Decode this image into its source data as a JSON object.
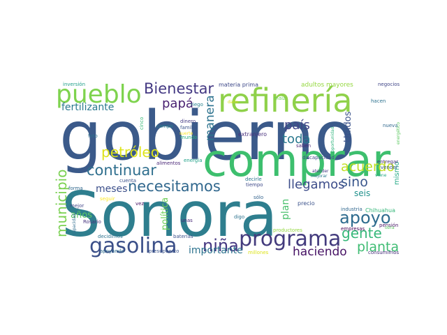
{
  "words": [
    {
      "id": "gobierno",
      "text": "gobierno",
      "color": "#3b5a8a"
    },
    {
      "id": "sonora",
      "text": "Sonora",
      "color": "#2e7e8e"
    },
    {
      "id": "comprar",
      "text": "comprar",
      "color": "#3dbf6e"
    },
    {
      "id": "refineria",
      "text": "refinería",
      "color": "#8fd14a"
    },
    {
      "id": "pueblo",
      "text": "pueblo",
      "color": "#7ed34e"
    },
    {
      "id": "gasolina",
      "text": "gasolina",
      "color": "#3b4f88"
    },
    {
      "id": "programa",
      "text": "programa",
      "color": "#433b7d"
    },
    {
      "id": "bienestar",
      "text": "Bienestar",
      "color": "#443983"
    },
    {
      "id": "necesitamos",
      "text": "necesitamos",
      "color": "#30678d"
    },
    {
      "id": "continuar",
      "text": "continuar",
      "color": "#2f6f8e"
    },
    {
      "id": "municipio",
      "text": "municipio",
      "color": "#7ad151"
    },
    {
      "id": "apoyo",
      "text": "apoyo",
      "color": "#2e6b8e"
    },
    {
      "id": "gente",
      "text": "gente",
      "color": "#35b779"
    },
    {
      "id": "nina",
      "text": "niña",
      "color": "#453781"
    },
    {
      "id": "petroleo",
      "text": "petróleo",
      "color": "#dde318"
    },
    {
      "id": "llegamos",
      "text": "llegamos",
      "color": "#3d4d8a"
    },
    {
      "id": "pais",
      "text": "país",
      "color": "#404588"
    },
    {
      "id": "papa",
      "text": "papá",
      "color": "#481f70"
    },
    {
      "id": "manera",
      "text": "manera",
      "color": "#2c728e"
    },
    {
      "id": "toda",
      "text": "toda",
      "color": "#2a788e"
    },
    {
      "id": "acuerdo",
      "text": "acuerdo",
      "color": "#c2df23"
    },
    {
      "id": "planta",
      "text": "planta",
      "color": "#3fbc73"
    },
    {
      "id": "haciendo",
      "text": "haciendo",
      "color": "#471365"
    },
    {
      "id": "sino",
      "text": "sino",
      "color": "#39568c"
    },
    {
      "id": "fertilizante",
      "text": "fertilizante",
      "color": "#2a788e"
    },
    {
      "id": "importante",
      "text": "importante",
      "color": "#2c728e"
    },
    {
      "id": "meses",
      "text": "meses",
      "color": "#3c4f8a"
    },
    {
      "id": "anos",
      "text": "años",
      "color": "#5ec962"
    },
    {
      "id": "politica",
      "text": "política",
      "color": "#6ece58"
    },
    {
      "id": "plan",
      "text": "plan",
      "color": "#4ac16d"
    },
    {
      "id": "unidos",
      "text": "Unidos",
      "color": "#3b528b"
    },
    {
      "id": "seis",
      "text": "seis",
      "color": "#21918c"
    },
    {
      "id": "mismo",
      "text": "mismo",
      "color": "#22a884"
    },
    {
      "id": "inversion",
      "text": "inversión",
      "color": "#1f9e89"
    },
    {
      "id": "materia_prima",
      "text": "materia prima",
      "color": "#3e4989"
    },
    {
      "id": "adultos_mayores",
      "text": "adultos mayores",
      "color": "#95d840"
    },
    {
      "id": "negocios",
      "text": "negocios",
      "color": "#404688"
    },
    {
      "id": "maiz",
      "text": "maíz",
      "color": "#6ece58"
    },
    {
      "id": "hacen",
      "text": "hacen",
      "color": "#2c718e"
    },
    {
      "id": "dano",
      "text": "daño",
      "color": "#d8e219"
    },
    {
      "id": "riego",
      "text": "riego",
      "color": "#26828e"
    },
    {
      "id": "cinco",
      "text": "cinco",
      "color": "#38b977"
    },
    {
      "id": "dinero",
      "text": "dinero",
      "color": "#443a83"
    },
    {
      "id": "familia",
      "text": "familia",
      "color": "#3a548c"
    },
    {
      "id": "campo",
      "text": "campo",
      "color": "#27808e"
    },
    {
      "id": "suerte",
      "text": "suerte",
      "color": "#fde725"
    },
    {
      "id": "mundo",
      "text": "mundo",
      "color": "#29af7f"
    },
    {
      "id": "extranjero",
      "text": "extranjero",
      "color": "#472f7d"
    },
    {
      "id": "nueva",
      "text": "nueva",
      "color": "#31688e"
    },
    {
      "id": "energetico",
      "text": "energético",
      "color": "#5ec962"
    },
    {
      "id": "oportunidad",
      "text": "oportunidad",
      "color": "#2eb37c"
    },
    {
      "id": "saben",
      "text": "saben",
      "color": "#482475"
    },
    {
      "id": "foto",
      "text": "foto",
      "color": "#2c728e"
    },
    {
      "id": "alimentos",
      "text": "alimentos",
      "color": "#482576"
    },
    {
      "id": "energia",
      "text": "energía",
      "color": "#1fa088"
    },
    {
      "id": "discapacidad",
      "text": "discapacidad",
      "color": "#3f4889"
    },
    {
      "id": "entregar",
      "text": "entregar",
      "color": "#472d7b"
    },
    {
      "id": "vender",
      "text": "vender",
      "color": "#39568c"
    },
    {
      "id": "viene",
      "text": "viene",
      "color": "#22a884"
    },
    {
      "id": "forma",
      "text": "forma",
      "color": "#31688e"
    },
    {
      "id": "cuenta",
      "text": "cuenta",
      "color": "#3b528b"
    },
    {
      "id": "decirle",
      "text": "decirle",
      "color": "#2c728e"
    },
    {
      "id": "tiempo",
      "text": "tiempo",
      "color": "#3e4989"
    },
    {
      "id": "atender",
      "text": "atender",
      "color": "#443983"
    },
    {
      "id": "mejorar",
      "text": "mejorar",
      "color": "#2a788e"
    },
    {
      "id": "mejor",
      "text": "mejor",
      "color": "#404588"
    },
    {
      "id": "seguir",
      "text": "seguir",
      "color": "#fde725"
    },
    {
      "id": "vez",
      "text": "vez",
      "color": "#471365"
    },
    {
      "id": "solo",
      "text": "sólo",
      "color": "#33638d"
    },
    {
      "id": "precio",
      "text": "precio",
      "color": "#3b528b"
    },
    {
      "id": "industria",
      "text": "industria",
      "color": "#31688e"
    },
    {
      "id": "chihuahua",
      "text": "Chihuahua",
      "color": "#35b779"
    },
    {
      "id": "rosario",
      "text": "Rosario",
      "color": "#46337e"
    },
    {
      "id": "unas",
      "text": "unas",
      "color": "#482878"
    },
    {
      "id": "digo",
      "text": "digo",
      "color": "#2c728e"
    },
    {
      "id": "empresas",
      "text": "empresas",
      "color": "#440154"
    },
    {
      "id": "pension",
      "text": "pensión",
      "color": "#481467"
    },
    {
      "id": "obra",
      "text": "obra",
      "color": "#5ec962"
    },
    {
      "id": "capacidad",
      "text": "capacidad",
      "color": "#2f6c8e"
    },
    {
      "id": "decidimos",
      "text": "decidimos",
      "color": "#2c728e"
    },
    {
      "id": "baterias",
      "text": "baterías",
      "color": "#3b528b"
    },
    {
      "id": "productores",
      "text": "productores",
      "color": "#95d840"
    },
    {
      "id": "apoyando",
      "text": "apoyando",
      "color": "#2e6e8e"
    },
    {
      "id": "presupuesto",
      "text": "presupuesto",
      "color": "#3a548c"
    },
    {
      "id": "millones",
      "text": "millones",
      "color": "#dde318"
    },
    {
      "id": "consumimos",
      "text": "consumimos",
      "color": "#472c7a"
    }
  ]
}
